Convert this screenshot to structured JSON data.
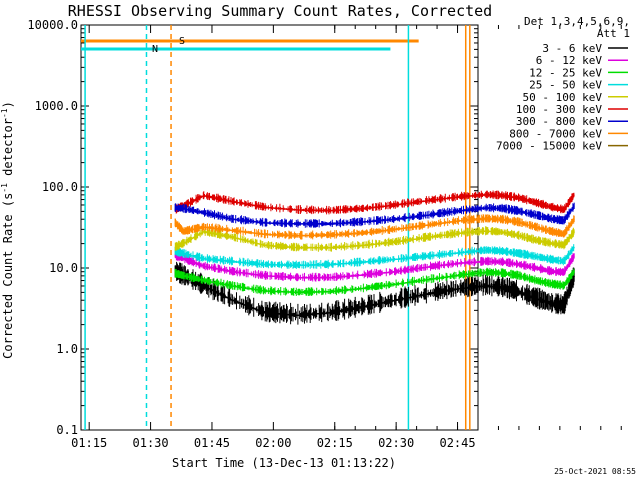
{
  "chart_data": {
    "type": "line",
    "title": "RHESSI Observing Summary Count Rates, Corrected",
    "xlabel": "Start Time (13-Dec-13 01:13:22)",
    "ylabel": "Corrected Count Rate (s",
    "ylabel_sup": "-1",
    "ylabel_tail": " detector",
    "ylabel_sup2": "-1",
    "ylabel_end": ")",
    "y_scale": "log",
    "ylim": [
      0.1,
      10000
    ],
    "xlim": [
      "01:13:22",
      "02:50:00"
    ],
    "x_ticks": [
      "01:15",
      "01:30",
      "01:45",
      "02:00",
      "02:15",
      "02:30",
      "02:45"
    ],
    "y_ticks": [
      "0.1",
      "1.0",
      "10.0",
      "100.0",
      "1000.0",
      "10000.0"
    ],
    "legend": {
      "header1": "Det 1,3,4,5,6,9,",
      "header2": "Att 1",
      "placement": "right",
      "entries": [
        {
          "label": "3 - 6 keV",
          "color": "#000000"
        },
        {
          "label": "6 - 12 keV",
          "color": "#dd00dd"
        },
        {
          "label": "12 - 25 keV",
          "color": "#00dd00"
        },
        {
          "label": "25 - 50 keV",
          "color": "#00dddd"
        },
        {
          "label": "50 - 100 keV",
          "color": "#cccc00"
        },
        {
          "label": "100 - 300 keV",
          "color": "#dd0000"
        },
        {
          "label": "300 - 800 keV",
          "color": "#0000cc"
        },
        {
          "label": "800 - 7000 keV",
          "color": "#ff8800"
        },
        {
          "label": "7000 - 15000 keV",
          "color": "#886600"
        }
      ]
    },
    "flags": [
      {
        "label": "N",
        "color": "#00dddd"
      },
      {
        "label": "S",
        "color": "#ff8800"
      }
    ],
    "vertical_markers": [
      {
        "time": "01:14.0",
        "color": "#00dddd",
        "style": "solid"
      },
      {
        "time": "01:29.0",
        "color": "#00dddd",
        "style": "dashed"
      },
      {
        "time": "01:35.0",
        "color": "#ff8800",
        "style": "dashed"
      },
      {
        "time": "02:33.0",
        "color": "#00dddd",
        "style": "solid"
      },
      {
        "time": "02:47.0",
        "color": "#ff8800",
        "style": "solid"
      },
      {
        "time": "02:48.0",
        "color": "#ff8800",
        "style": "solid"
      }
    ],
    "series": [
      {
        "name": "3 - 6 keV",
        "color": "#000000",
        "x": [
          36,
          38,
          43,
          50,
          58,
          66,
          74,
          82,
          90,
          98,
          106,
          112,
          116,
          120,
          124,
          128,
          131,
          133.5
        ],
        "y": [
          9,
          8,
          6,
          4,
          2.8,
          2.6,
          2.8,
          3.3,
          4,
          4.8,
          5.6,
          6,
          5.7,
          5,
          4.2,
          3.6,
          3.4,
          8
        ]
      },
      {
        "name": "6 - 12 keV",
        "color": "#dd00dd",
        "x": [
          36,
          38,
          43,
          50,
          58,
          66,
          74,
          82,
          90,
          98,
          106,
          112,
          116,
          120,
          124,
          128,
          131,
          133.5
        ],
        "y": [
          14,
          13,
          10.5,
          9,
          8,
          7.6,
          7.6,
          8.2,
          9,
          10.3,
          11.5,
          12,
          11.8,
          11,
          10,
          9,
          8.8,
          14
        ]
      },
      {
        "name": "12 - 25 keV",
        "color": "#00dd00",
        "x": [
          36,
          38,
          43,
          50,
          58,
          66,
          74,
          82,
          90,
          98,
          106,
          112,
          116,
          120,
          124,
          128,
          131,
          133.5
        ],
        "y": [
          8.5,
          8,
          7,
          6,
          5.2,
          5,
          5.1,
          5.6,
          6.3,
          7.2,
          8.2,
          8.8,
          8.6,
          8,
          7,
          6.3,
          6,
          9
        ]
      },
      {
        "name": "25 - 50 keV",
        "color": "#00dddd",
        "x": [
          36,
          38,
          43,
          50,
          58,
          66,
          74,
          82,
          90,
          98,
          106,
          112,
          116,
          120,
          124,
          128,
          131,
          133.5
        ],
        "y": [
          16,
          15,
          13,
          12,
          11,
          10.8,
          11,
          11.8,
          12.8,
          14,
          15.5,
          16.5,
          16,
          15,
          13.8,
          12.6,
          12,
          18
        ]
      },
      {
        "name": "50 - 100 keV",
        "color": "#cccc00",
        "x": [
          36,
          38,
          43,
          50,
          58,
          66,
          74,
          82,
          90,
          98,
          106,
          112,
          116,
          120,
          124,
          128,
          131,
          133.5
        ],
        "y": [
          18,
          20,
          28,
          24,
          19,
          17.8,
          17.8,
          19,
          21,
          24,
          27,
          28.5,
          27.5,
          25,
          22,
          20,
          19,
          28
        ]
      },
      {
        "name": "100 - 300 keV",
        "color": "#dd0000",
        "x": [
          36,
          38,
          43,
          50,
          58,
          66,
          74,
          82,
          90,
          98,
          106,
          112,
          116,
          120,
          124,
          128,
          131,
          133.5
        ],
        "y": [
          52,
          58,
          78,
          66,
          56,
          52,
          51,
          54,
          60,
          68,
          76,
          80,
          78,
          73,
          64,
          56,
          52,
          80
        ]
      },
      {
        "name": "300 - 800 keV",
        "color": "#0000cc",
        "x": [
          36,
          38,
          43,
          50,
          58,
          66,
          74,
          82,
          90,
          98,
          106,
          112,
          116,
          120,
          124,
          128,
          131,
          133.5
        ],
        "y": [
          55,
          54,
          48,
          40,
          36,
          35,
          35,
          37,
          40,
          45,
          51,
          55,
          54,
          50,
          45,
          40,
          38,
          58
        ]
      },
      {
        "name": "800 - 7000 keV",
        "color": "#ff8800",
        "x": [
          36,
          38,
          43,
          50,
          58,
          66,
          74,
          82,
          90,
          98,
          106,
          112,
          116,
          120,
          124,
          128,
          131,
          133.5
        ],
        "y": [
          36,
          28,
          32,
          29,
          26,
          25,
          25.5,
          27,
          30,
          34,
          38.5,
          40.5,
          39.5,
          36.5,
          32,
          28,
          26,
          40
        ]
      }
    ]
  },
  "footer": {
    "timestamp": "25-Oct-2021 08:55"
  }
}
